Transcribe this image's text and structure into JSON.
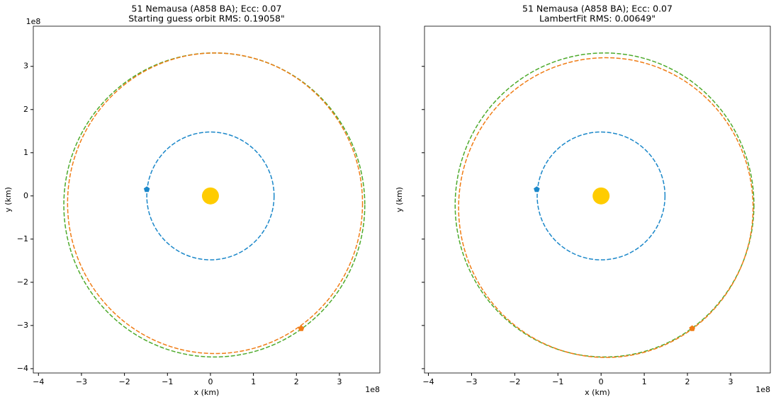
{
  "chart_data": [
    {
      "type": "orbit",
      "title": "51 Nemausa (A858 BA); Ecc: 0.07",
      "subtitle": "Starting guess orbit RMS: 0.19058\"",
      "xlabel": "x (km)",
      "ylabel": "y (km)",
      "x_offset_label": "1e8",
      "y_offset_label": "1e8",
      "ytick_labels": true,
      "xlim": [
        -4.12,
        3.94
      ],
      "ylim": [
        -4.1,
        3.93
      ],
      "xticks": [
        {
          "value": -4,
          "label": "−4"
        },
        {
          "value": -3,
          "label": "−3"
        },
        {
          "value": -2,
          "label": "−2"
        },
        {
          "value": -1,
          "label": "−1"
        },
        0,
        1,
        2,
        3
      ],
      "yticks": [
        {
          "value": -4,
          "label": "−4"
        },
        {
          "value": -3,
          "label": "−3"
        },
        {
          "value": -2,
          "label": "−2"
        },
        {
          "value": -1,
          "label": "−1"
        },
        0,
        1,
        2,
        3
      ],
      "sun": {
        "x": 0,
        "y": 0,
        "color": "#ffcc00"
      },
      "orbits": [
        {
          "color": "#1a87c9",
          "center": [
            0,
            0
          ],
          "radii": [
            1.48,
            1.48
          ]
        },
        {
          "color": "#4daa2b",
          "center": [
            0.09,
            -0.21
          ],
          "radii": [
            3.5,
            3.52
          ]
        },
        {
          "color": "#f07c15",
          "center": [
            0.107,
            -0.17
          ],
          "radii": [
            3.43,
            3.48
          ]
        }
      ],
      "points": [
        {
          "color": "#1a87c9",
          "x": -1.48,
          "y": 0.15
        },
        {
          "color": "#f07c15",
          "x": 2.11,
          "y": -3.07
        }
      ]
    },
    {
      "type": "orbit",
      "title": "51 Nemausa (A858 BA); Ecc: 0.07",
      "subtitle": "LambertFit RMS: 0.00649\"",
      "xlabel": "x (km)",
      "ylabel": "y (km)",
      "x_offset_label": "1e8",
      "ytick_labels": false,
      "xlim": [
        -4.09,
        3.92
      ],
      "ylim": [
        -4.1,
        3.93
      ],
      "xticks": [
        {
          "value": -4,
          "label": "−4"
        },
        {
          "value": -3,
          "label": "−3"
        },
        {
          "value": -2,
          "label": "−2"
        },
        {
          "value": -1,
          "label": "−1"
        },
        0,
        1,
        2,
        3
      ],
      "yticks": [
        -4,
        -3,
        -2,
        -1,
        0,
        1,
        2,
        3
      ],
      "sun": {
        "x": 0,
        "y": 0,
        "color": "#ffcc00"
      },
      "orbits": [
        {
          "color": "#1a87c9",
          "center": [
            0,
            0
          ],
          "radii": [
            1.48,
            1.48
          ]
        },
        {
          "color": "#4daa2b",
          "center": [
            0.08,
            -0.21
          ],
          "radii": [
            3.46,
            3.52
          ]
        },
        {
          "color": "#f07c15",
          "center": [
            0.11,
            -0.27
          ],
          "radii": [
            3.41,
            3.47
          ]
        }
      ],
      "points": [
        {
          "color": "#1a87c9",
          "x": -1.49,
          "y": 0.15
        },
        {
          "color": "#f07c15",
          "x": 2.11,
          "y": -3.07
        }
      ]
    }
  ]
}
